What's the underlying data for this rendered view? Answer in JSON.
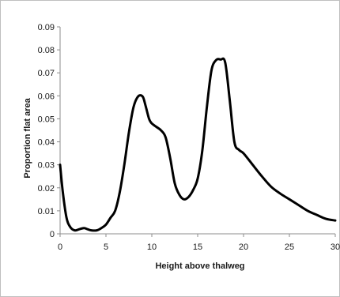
{
  "chart_data": {
    "type": "line",
    "title": "",
    "xlabel": "Height above thalweg",
    "ylabel": "Proportion flat area",
    "xlim": [
      0,
      30
    ],
    "ylim": [
      0,
      0.09
    ],
    "x_ticks": [
      "0",
      "5",
      "10",
      "15",
      "20",
      "25",
      "30"
    ],
    "y_ticks": [
      "0",
      "0.01",
      "0.02",
      "0.03",
      "0.04",
      "0.05",
      "0.06",
      "0.07",
      "0.08",
      "0.09"
    ],
    "grid": false,
    "legend": "none",
    "line_color": "#000000",
    "series": [
      {
        "x": [
          0,
          0.3,
          0.7,
          1.1,
          1.6,
          2.1,
          2.6,
          3.0,
          3.4,
          4.0,
          4.5,
          5.0,
          5.5,
          6.0,
          6.5,
          7.0,
          7.5,
          8.0,
          8.5,
          9.0,
          9.3,
          9.7,
          10.0,
          10.5,
          11.0,
          11.5,
          12.0,
          12.5,
          13.0,
          13.5,
          14.0,
          14.5,
          15.0,
          15.5,
          16.0,
          16.5,
          17.0,
          17.5,
          18.0,
          18.5,
          19.0,
          19.5,
          20.0,
          21.0,
          22.0,
          23.0,
          24.0,
          25.0,
          26.0,
          27.0,
          28.0,
          29.0,
          30.0
        ],
        "y": [
          0.03,
          0.018,
          0.007,
          0.003,
          0.0015,
          0.002,
          0.0025,
          0.002,
          0.0015,
          0.0015,
          0.0025,
          0.004,
          0.007,
          0.01,
          0.018,
          0.03,
          0.044,
          0.055,
          0.0597,
          0.0597,
          0.056,
          0.05,
          0.048,
          0.0465,
          0.045,
          0.042,
          0.033,
          0.022,
          0.017,
          0.015,
          0.016,
          0.019,
          0.024,
          0.036,
          0.055,
          0.071,
          0.0755,
          0.0758,
          0.0745,
          0.058,
          0.04,
          0.0365,
          0.035,
          0.03,
          0.025,
          0.0205,
          0.0175,
          0.015,
          0.0125,
          0.01,
          0.0082,
          0.0065,
          0.0058
        ]
      }
    ]
  }
}
